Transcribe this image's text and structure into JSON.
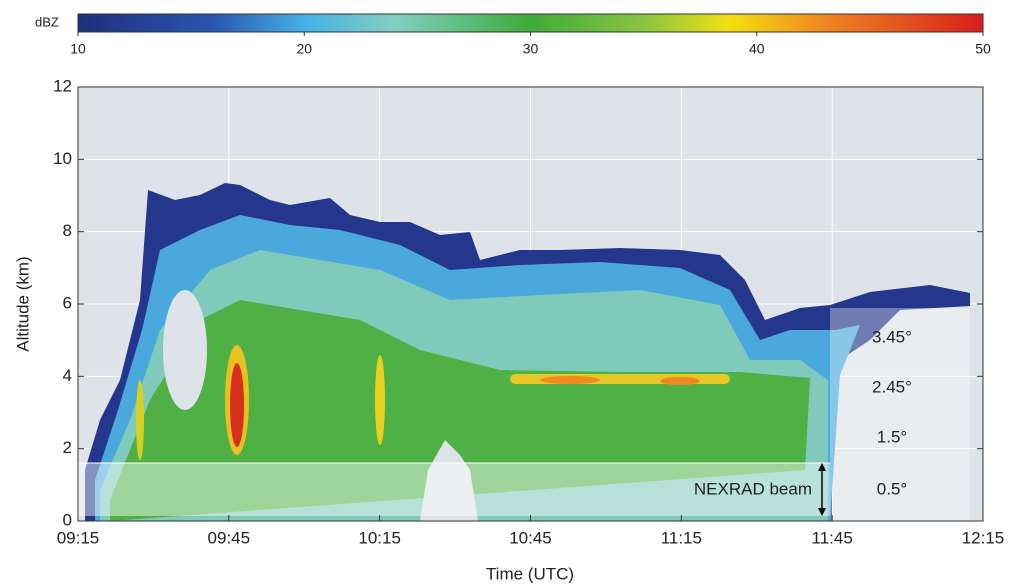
{
  "chart_data": {
    "type": "time-height",
    "colorbar": {
      "label": "dBZ",
      "lim": [
        10,
        50
      ],
      "ticks": [
        10,
        20,
        30,
        40,
        50
      ]
    },
    "x": [
      "09:15",
      "09:45",
      "10:15",
      "10:45",
      "11:15",
      "11:45",
      "12:15"
    ],
    "xlabel": "Time (UTC)",
    "ylabel": "Altitude (km)",
    "ylim": [
      0,
      12
    ],
    "yticks": [
      0,
      2,
      4,
      6,
      8,
      10,
      12
    ],
    "grid": true,
    "annotations": [
      "3.45°",
      "2.45°",
      "1.5°",
      "0.5°",
      "NEXRAD beam"
    ]
  }
}
